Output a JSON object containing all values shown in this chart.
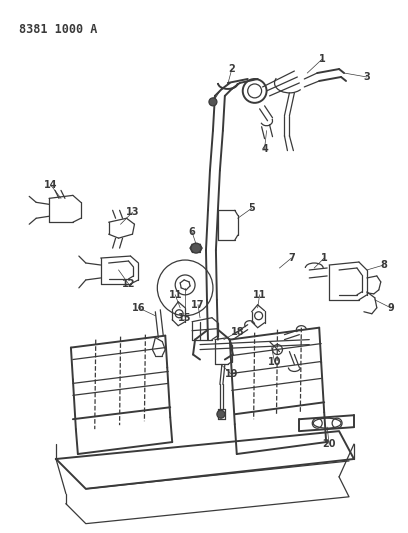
{
  "title": "8381 1000 A",
  "bg": "#ffffff",
  "lc": "#3a3a3a",
  "fig_width": 4.08,
  "fig_height": 5.33,
  "dpi": 100,
  "label_fs": 7
}
